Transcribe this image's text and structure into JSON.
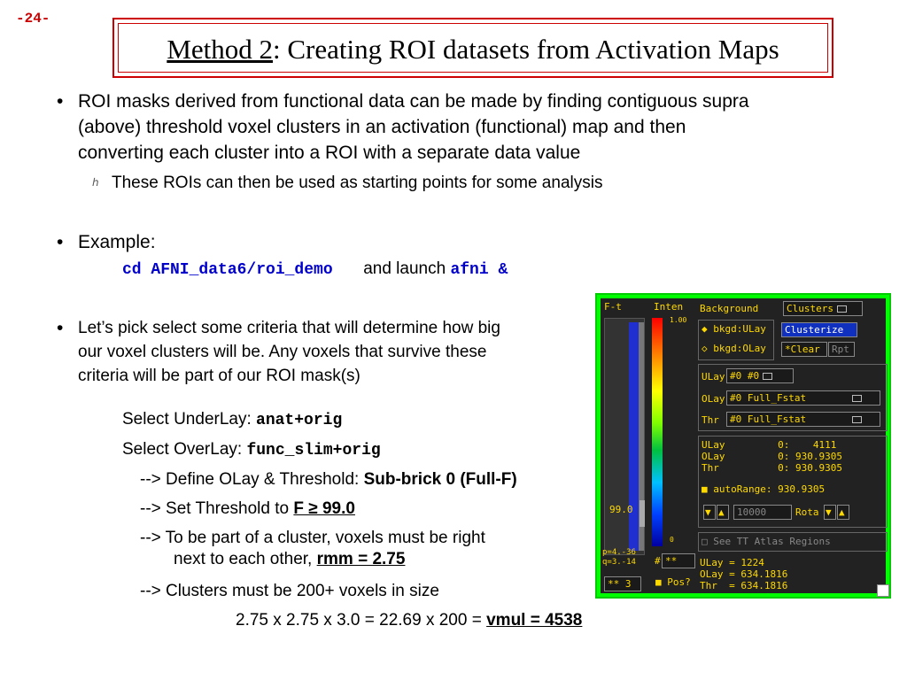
{
  "page_number": "-24-",
  "title": {
    "underlined": "Method 2",
    "rest": ": Creating ROI datasets from Activation Maps"
  },
  "bullets": {
    "b1_line1": "ROI masks derived from functional data can be made by finding contiguous supra",
    "b1_line2": "(above) threshold voxel clusters in an activation (functional) map and then",
    "b1_line3": "converting each cluster into a ROI with a separate data value",
    "b1_sub": "These ROIs can then be used as starting points for some analysis",
    "b2_label": "Example:",
    "b2_cmd": "cd AFNI_data6/roi_demo",
    "b2_and": "and launch",
    "b2_launch": "afni &",
    "b3_line1": "Let’s pick select some criteria that will determine how big",
    "b3_line2": "our voxel clusters will be.  Any voxels that survive these",
    "b3_line3": "criteria will be part of our ROI mask(s)"
  },
  "steps": {
    "underlay_label": "Select UnderLay:",
    "underlay_value": "anat+orig",
    "overlay_label": "Select OverLay:",
    "overlay_value": "func_slim+orig",
    "define_label": "--> Define OLay & Threshold:",
    "define_value": "Sub-brick 0 (Full-F)",
    "threshold_label": "--> Set Threshold to",
    "threshold_value": "F ≥ 99.0",
    "cluster_line1": "--> To be part of a cluster, voxels must be right",
    "cluster_line2": "next to each other,",
    "rmm_value": "rmm = 2.75",
    "size_line": "--> Clusters must be 200+ voxels in size",
    "calc_line": "2.75 x 2.75 x 3.0 = 22.69 x 200  =",
    "vmul_value": "vmul = 4538"
  },
  "afni": {
    "ft_label": "F-t",
    "inten_label": "Inten",
    "scale_top": "1.00",
    "scale_bottom": "0",
    "thresh_value": "99.0",
    "p_value": "p=4.-36",
    "q_value": "q=3.-14",
    "stars_left": "**",
    "stars_left_val": "3",
    "hash_label": "#",
    "hash_stars": "**",
    "pos_label": "Pos?",
    "background_label": "Background",
    "clusters_btn": "Clusters",
    "bkgd_ulay": "bkgd:ULay",
    "bkgd_olay": "bkgd:OLay",
    "clusterize_btn": "Clusterize",
    "clear_btn": "*Clear",
    "rpt_btn": "Rpt",
    "ulay_label": "ULay",
    "ulay_value": "#0 #0",
    "olay_label": "OLay",
    "olay_value": "#0 Full_Fstat",
    "thr_label": "Thr",
    "thr_value": "#0 Full_Fstat",
    "info_ulay": "ULay         0:    4111",
    "info_olay": "OLay         0: 930.9305",
    "info_thr": "Thr          0: 930.9305",
    "autorange": "autoRange: 930.9305",
    "range_field": "10000",
    "rota_label": "Rota",
    "atlas_label": "See TT Atlas Regions",
    "bottom_ulay": "ULay = 1224",
    "bottom_olay": "OLay = 634.1816",
    "bottom_thr": "Thr  = 634.1816",
    "colors": {
      "green_border": "#00ff00",
      "panel_bg": "#222222",
      "text": "#ffd900"
    }
  }
}
